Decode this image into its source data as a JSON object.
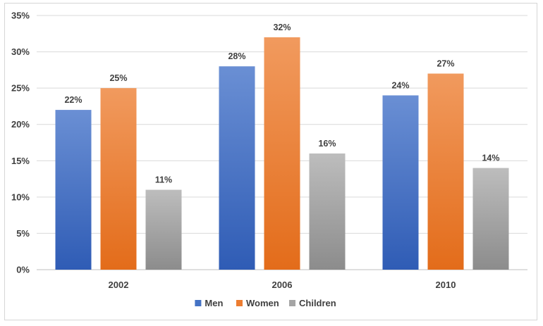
{
  "chart_data": {
    "type": "bar",
    "title": "",
    "xlabel": "",
    "ylabel": "",
    "categories": [
      "2002",
      "2006",
      "2010"
    ],
    "series": [
      {
        "name": "Men",
        "values": [
          22,
          28,
          24
        ],
        "color": "#4472c4",
        "color_light": "#6a8fd4",
        "color_dark": "#2f5cb5"
      },
      {
        "name": "Women",
        "values": [
          25,
          32,
          27
        ],
        "color": "#ed7d31",
        "color_light": "#f19a5e",
        "color_dark": "#e36c1a"
      },
      {
        "name": "Children",
        "values": [
          11,
          16,
          14
        ],
        "color": "#a5a5a5",
        "color_light": "#bdbdbd",
        "color_dark": "#8c8c8c"
      }
    ],
    "value_suffix": "%",
    "ylim": [
      0,
      35
    ],
    "y_ticks": [
      0,
      5,
      10,
      15,
      20,
      25,
      30,
      35
    ],
    "y_tick_labels": [
      "0%",
      "5%",
      "10%",
      "15%",
      "20%",
      "25%",
      "30%",
      "35%"
    ],
    "grid": true,
    "legend_position": "bottom"
  }
}
